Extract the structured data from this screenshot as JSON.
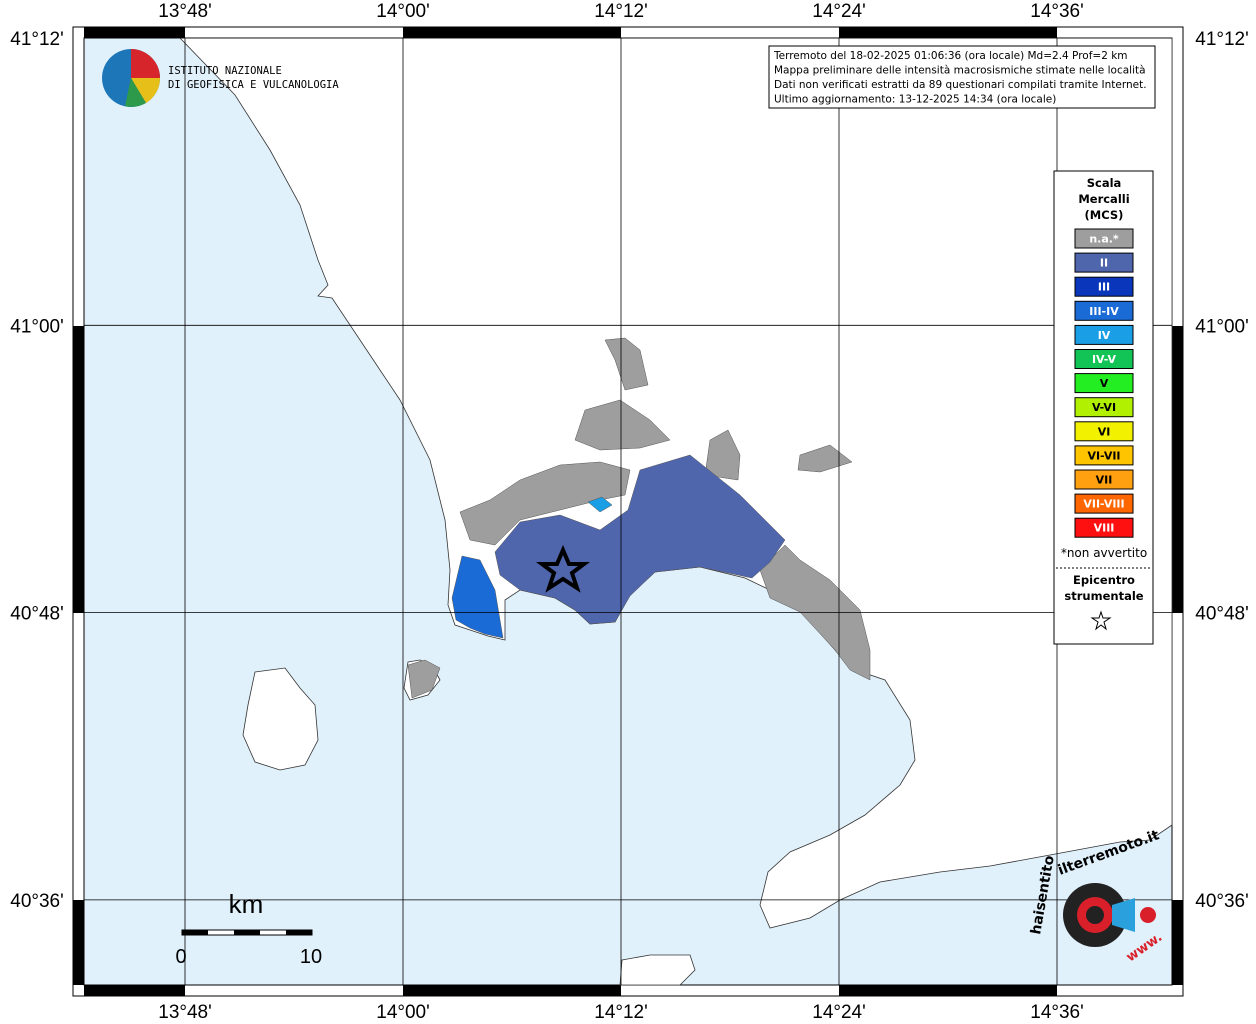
{
  "map": {
    "lon_labels": [
      "13°48'",
      "14°00'",
      "14°12'",
      "14°24'",
      "14°36'"
    ],
    "lat_labels": [
      "41°12'",
      "41°00'",
      "40°48'",
      "40°36'"
    ],
    "info": [
      "Terremoto del 18-02-2025 01:06:36 (ora locale) Md=2.4 Prof=2 km",
      "Mappa preliminare delle intensità macrosismiche stimate nelle località",
      "Dati non verificati estratti da 89 questionari compilati tramite Internet.",
      "Ultimo aggiornamento: 13-12-2025 14:34 (ora locale)"
    ],
    "logo": [
      "ISTITUTO NAZIONALE",
      "DI GEOFISICA E VULCANOLOGIA"
    ],
    "legend": {
      "title": [
        "Scala",
        "Mercalli",
        "(MCS)"
      ],
      "items": [
        {
          "label": "n.a.*",
          "color": "#9e9e9e"
        },
        {
          "label": "II",
          "color": "#4f66ad"
        },
        {
          "label": "III",
          "color": "#0a36bb"
        },
        {
          "label": "III-IV",
          "color": "#1b6bd6"
        },
        {
          "label": "IV",
          "color": "#1a9fe6"
        },
        {
          "label": "IV-V",
          "color": "#11c455"
        },
        {
          "label": "V",
          "color": "#22ee22"
        },
        {
          "label": "V-VI",
          "color": "#b0f000"
        },
        {
          "label": "VI",
          "color": "#f2f200"
        },
        {
          "label": "VI-VII",
          "color": "#ffc400"
        },
        {
          "label": "VII",
          "color": "#ffa010"
        },
        {
          "label": "VII-VIII",
          "color": "#ff6600"
        },
        {
          "label": "VIII",
          "color": "#ff1010"
        }
      ],
      "note": "*non avvertito",
      "epicenter": [
        "Epicentro",
        "strumentale"
      ]
    },
    "scale_bar": {
      "unit": "km",
      "labels": [
        "0",
        "10"
      ]
    },
    "site_logo": [
      "haisentito",
      "ilterremoto.it",
      "www."
    ]
  }
}
